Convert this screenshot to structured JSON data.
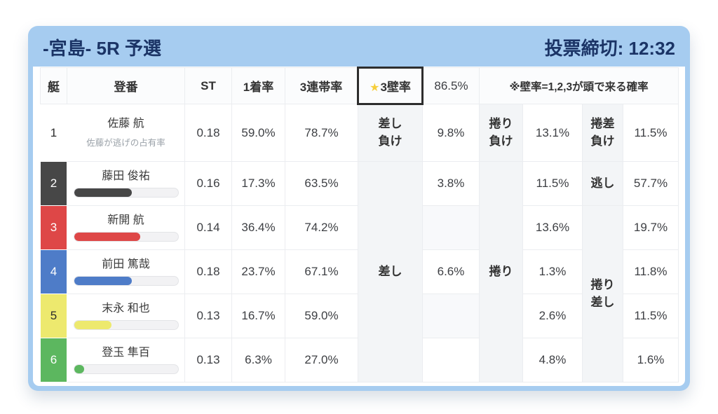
{
  "window": {
    "title": "-宮島- 5R 予選",
    "deadline": "投票締切: 12:32"
  },
  "table": {
    "headers": {
      "boat": "艇",
      "entry": "登番",
      "st": "ST",
      "first_rate": "1着率",
      "top3_rate": "3連帯率",
      "wall_star": "★",
      "wall_label": "3壁率",
      "wall_value": "86.5%",
      "note": "※壁率=1,2,3が頭で来る確率"
    },
    "merged_labels": {
      "sashi": "差し",
      "makuri": "捲り",
      "makuri_zashi": "捲り差し"
    },
    "rows": [
      {
        "boat": "1",
        "name": "佐藤 航",
        "subtitle": "佐藤が逃げの占有率",
        "st": "0.18",
        "first": "59.0%",
        "top3": "78.7%",
        "label1": "差し負け",
        "val1": "9.8%",
        "label2": "捲り負け",
        "val2": "13.1%",
        "label3": "捲差負け",
        "val3": "11.5%"
      },
      {
        "boat": "2",
        "name": "藤田 俊祐",
        "bar_percent": 56,
        "st": "0.16",
        "first": "17.3%",
        "top3": "63.5%",
        "val1": "3.8%",
        "val2": "11.5%",
        "label3": "逃し",
        "val3": "57.7%"
      },
      {
        "boat": "3",
        "name": "新開 航",
        "bar_percent": 64,
        "st": "0.14",
        "first": "36.4%",
        "top3": "74.2%",
        "val1": "",
        "val2": "13.6%",
        "val3": "19.7%"
      },
      {
        "boat": "4",
        "name": "前田 篤哉",
        "bar_percent": 56,
        "st": "0.18",
        "first": "23.7%",
        "top3": "67.1%",
        "val1": "6.6%",
        "val2": "1.3%",
        "val3": "11.8%"
      },
      {
        "boat": "5",
        "name": "末永 和也",
        "bar_percent": 36,
        "st": "0.13",
        "first": "16.7%",
        "top3": "59.0%",
        "val1": "",
        "val2": "2.6%",
        "val3": "11.5%"
      },
      {
        "boat": "6",
        "name": "登玉 隼百",
        "bar_percent": 10,
        "st": "0.13",
        "first": "6.3%",
        "top3": "27.0%",
        "val1": "",
        "val2": "4.8%",
        "val3": "1.6%"
      }
    ]
  },
  "colors": {
    "card_blue": "#A6CCF0",
    "title_navy": "#1B3466",
    "highlight_orange": "#E3A33E",
    "star_yellow": "#F6CE3B",
    "boats": {
      "b1": "#FFFFFF",
      "b2": "#474747",
      "b3": "#DE4747",
      "b4": "#4E7CC8",
      "b5": "#EDE96E",
      "b6": "#5CB75F"
    }
  }
}
